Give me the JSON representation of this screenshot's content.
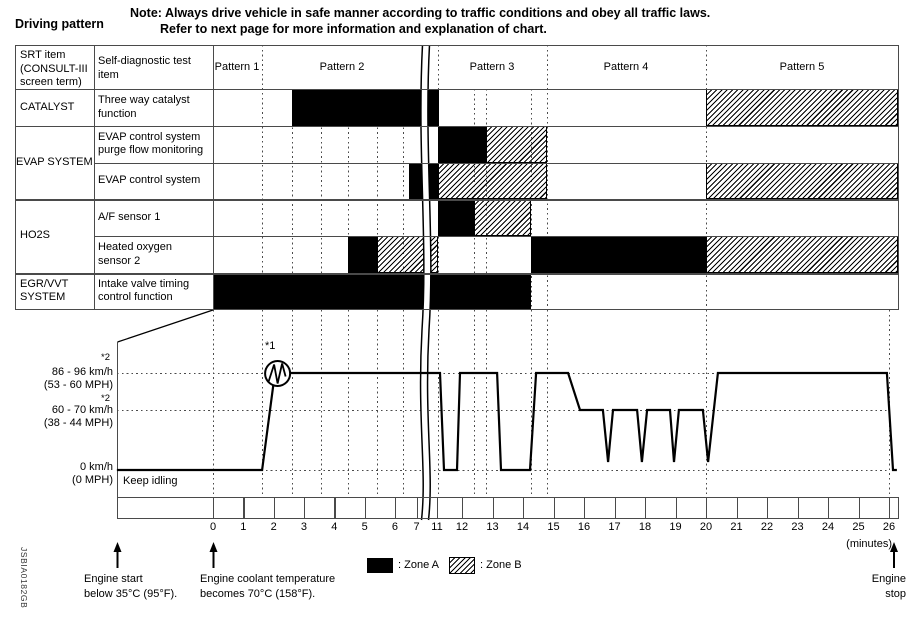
{
  "title": "Driving pattern",
  "note": {
    "line1": "Note: Always drive vehicle in safe manner according to traffic conditions and obey all traffic laws.",
    "line2": "Refer to next page for more information and explanation of chart."
  },
  "figure_code": "JSBIA0182GB",
  "table": {
    "header_col1": "SRT item\n(CONSULT-III\nscreen term)",
    "header_col2": "Self-diagnostic test\nitem",
    "patterns": [
      "Pattern 1",
      "Pattern 2",
      "Pattern 3",
      "Pattern 4",
      "Pattern 5"
    ],
    "group_names": [
      "CATALYST",
      "EVAP SYSTEM",
      "HO2S",
      "EGR/VVT\nSYSTEM"
    ],
    "row_labels": [
      "Three way catalyst\nfunction",
      "EVAP control system\npurge flow monitoring",
      "EVAP control system",
      "A/F sensor 1",
      "Heated oxygen\nsensor 2",
      "Intake valve timing\ncontrol function"
    ]
  },
  "legend": {
    "zone_a": ": Zone A",
    "zone_b": ": Zone B"
  },
  "speed_axis": {
    "high_footnote": "*2",
    "high_label": "86 - 96 km/h",
    "high_label2": "(53 - 60 MPH)",
    "mid_footnote": "*2",
    "mid_label": "60 - 70 km/h",
    "mid_label2": "(38 - 44 MPH)",
    "zero_label": "0 km/h",
    "zero_label2": "(0 MPH)",
    "idle_label": "Keep idling",
    "marker_label": "*1"
  },
  "annotations": {
    "engine_start": "Engine start\nbelow 35°C (95°F).",
    "coolant": "Engine coolant temperature\nbecomes 70°C (158°F).",
    "engine_stop": "Engine\nstop"
  },
  "chart_data": {
    "type": "table",
    "subtype": "diagnostic-timeline-gantt-plus-speed-line",
    "unit": "minutes",
    "time_axis": {
      "ticks": [
        0,
        1,
        2,
        3,
        4,
        5,
        6,
        7,
        11,
        12,
        13,
        14,
        15,
        16,
        17,
        18,
        19,
        20,
        21,
        22,
        23,
        24,
        25,
        26
      ],
      "break_after": 7,
      "break_resume": 11,
      "label": "(minutes)"
    },
    "zone_styles": {
      "A": "solid-black",
      "B": "diagonal-hatch"
    },
    "rows": [
      {
        "srt_item": "CATALYST",
        "test_item": "Three way catalyst function",
        "segments": [
          {
            "zone": "A",
            "from": 2.6,
            "to": 11.1
          },
          {
            "zone": "B",
            "from": 20,
            "to": 26.3
          }
        ]
      },
      {
        "srt_item": "EVAP SYSTEM",
        "test_item": "EVAP control system purge flow monitoring",
        "segments": [
          {
            "zone": "A",
            "from": 11.05,
            "to": 12.8
          },
          {
            "zone": "B",
            "from": 12.8,
            "to": 14.8
          }
        ]
      },
      {
        "srt_item": "EVAP SYSTEM",
        "test_item": "EVAP control system",
        "segments": [
          {
            "zone": "A",
            "from": 6.66,
            "to": 11.05
          },
          {
            "zone": "B",
            "from": 11.05,
            "to": 14.8
          },
          {
            "zone": "B",
            "from": 20,
            "to": 26.3
          }
        ]
      },
      {
        "srt_item": "HO2S",
        "test_item": "A/F sensor 1",
        "segments": [
          {
            "zone": "A",
            "from": 11.05,
            "to": 12.4
          },
          {
            "zone": "B",
            "from": 12.4,
            "to": 14.25
          }
        ]
      },
      {
        "srt_item": "HO2S",
        "test_item": "Heated oxygen sensor 2",
        "segments": [
          {
            "zone": "A",
            "from": 4.45,
            "to": 5.4
          },
          {
            "zone": "B",
            "from": 5.4,
            "to": 11.05
          },
          {
            "zone": "A",
            "from": 14.25,
            "to": 20
          },
          {
            "zone": "B",
            "from": 20,
            "to": 26.3
          }
        ]
      },
      {
        "srt_item": "EGR/VVT SYSTEM",
        "test_item": "Intake valve timing control function",
        "segments": [
          {
            "zone": "A",
            "from": 0,
            "to": 14.25
          }
        ]
      }
    ],
    "pattern_boundaries_min": [
      1.62,
      11.05,
      14.8,
      20
    ],
    "minor_gridlines_min": [
      2.6,
      3.55,
      4.45,
      5.4,
      6.38,
      12.4,
      12.8,
      14.25
    ],
    "graph_gridlines_min": [
      0,
      1.62,
      2.6,
      3.55,
      4.45,
      5.4,
      6.38,
      11.05,
      12.4,
      12.8,
      14.25,
      14.8,
      20,
      26
    ],
    "speed_levels_kmh": {
      "high": "86-96 km/h (53-60 MPH)",
      "mid": "60-70 km/h (38-44 MPH)",
      "zero": "0 km/h"
    },
    "speed_profile": [
      [
        -3.17,
        "zero"
      ],
      [
        1.62,
        "zero"
      ],
      [
        2.04,
        "high"
      ],
      [
        11.12,
        "high"
      ],
      [
        11.28,
        "zero"
      ],
      [
        11.8,
        "zero"
      ],
      [
        11.92,
        "high"
      ],
      [
        13.15,
        "high"
      ],
      [
        13.28,
        "zero"
      ],
      [
        14.23,
        "zero"
      ],
      [
        14.43,
        "high"
      ],
      [
        15.48,
        "high"
      ],
      [
        15.87,
        "mid"
      ],
      [
        16.62,
        "mid"
      ],
      [
        16.79,
        "dip"
      ],
      [
        16.95,
        "mid"
      ],
      [
        17.74,
        "mid"
      ],
      [
        17.9,
        "dip"
      ],
      [
        18.07,
        "mid"
      ],
      [
        18.82,
        "mid"
      ],
      [
        18.95,
        "dip"
      ],
      [
        19.11,
        "mid"
      ],
      [
        19.9,
        "mid"
      ],
      [
        20.07,
        "dip"
      ],
      [
        20.39,
        "high"
      ],
      [
        25.93,
        "high"
      ],
      [
        26.13,
        "zero"
      ],
      [
        26.26,
        "zero"
      ]
    ],
    "magnifier_marker": {
      "t": 2.13,
      "level": "high",
      "label": "*1"
    }
  }
}
